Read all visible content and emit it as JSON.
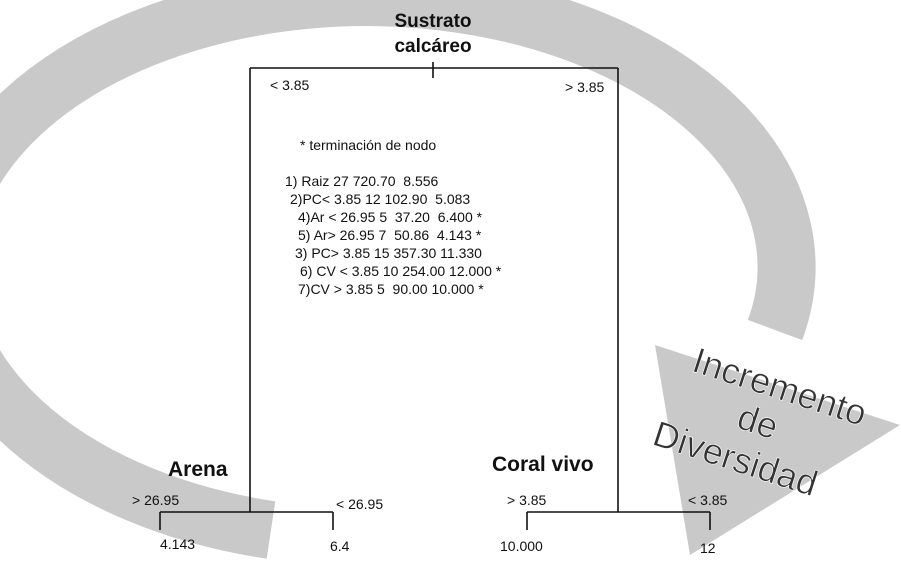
{
  "title": [
    "Sustrato",
    "calcáreo"
  ],
  "root_split": {
    "left": "< 3.85",
    "right": "> 3.85"
  },
  "legend": "* terminación de nodo",
  "nodes": [
    "1) Raiz 27 720.70  8.556",
    "2)PC< 3.85 12 102.90  5.083",
    "4)Ar < 26.95 5  37.20  6.400 *",
    "5) Ar> 26.95 7  50.86  4.143 *",
    "3) PC> 3.85 15 357.30 11.330",
    "6) CV < 3.85 10 254.00 12.000 *",
    "7)CV > 3.85 5  90.00 10.000 *"
  ],
  "left_branch": {
    "label": "Arena",
    "split_left": "> 26.95",
    "split_right": "< 26.95",
    "leaf_left": "4.143",
    "leaf_right": "6.4"
  },
  "right_branch": {
    "label": "Coral vivo",
    "split_left": "> 3.85",
    "split_right": "< 3.85",
    "leaf_left": "10.000",
    "leaf_right": "12"
  },
  "arrow_label": [
    "Incremento",
    "de",
    "Diversidad"
  ]
}
